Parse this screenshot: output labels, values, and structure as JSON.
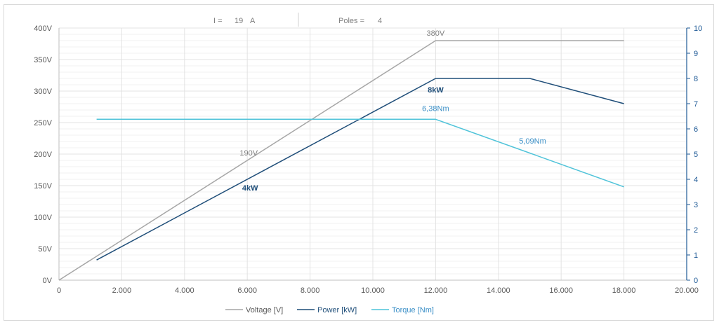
{
  "header": {
    "current_label": "I =",
    "current_value": "19",
    "current_unit": "A",
    "poles_label": "Poles =",
    "poles_value": "4"
  },
  "colors": {
    "voltage": "#a6a6a6",
    "power": "#1f4e79",
    "torque": "#4fc3d9",
    "grid": "#e3e3e3",
    "right_axis": "#1f5a96"
  },
  "chart_data": {
    "type": "line",
    "x_ticks": [
      "0",
      "2.000",
      "4.000",
      "6.000",
      "8.000",
      "10.000",
      "12.000",
      "14.000",
      "16.000",
      "18.000",
      "20.000"
    ],
    "y_left_ticks": [
      "0V",
      "50V",
      "100V",
      "150V",
      "200V",
      "250V",
      "300V",
      "350V",
      "400V"
    ],
    "y_right_ticks": [
      "0",
      "1",
      "2",
      "3",
      "4",
      "5",
      "6",
      "7",
      "8",
      "9",
      "10"
    ],
    "xlim": [
      0,
      20000
    ],
    "ylim_left": [
      0,
      400
    ],
    "ylim_right": [
      0,
      10
    ],
    "grid": true,
    "legend_position": "bottom",
    "series": [
      {
        "key": "voltage",
        "name": "Voltage [V]",
        "axis": "left",
        "points": [
          [
            0,
            0
          ],
          [
            12000,
            380
          ],
          [
            18000,
            380
          ]
        ]
      },
      {
        "key": "power",
        "name": "Power [kW]",
        "axis": "right",
        "points": [
          [
            1200,
            0.8
          ],
          [
            12000,
            8
          ],
          [
            15000,
            8
          ],
          [
            18000,
            7
          ]
        ]
      },
      {
        "key": "torque",
        "name": "Torque [Nm]",
        "axis": "right",
        "points": [
          [
            1200,
            6.38
          ],
          [
            12000,
            6.38
          ],
          [
            18000,
            3.7
          ]
        ]
      }
    ],
    "annotations": [
      {
        "text": "380V",
        "series": "voltage",
        "x": 12000,
        "y": 380,
        "axis": "left"
      },
      {
        "text": "190V",
        "series": "voltage",
        "x": 6000,
        "y": 190,
        "axis": "left"
      },
      {
        "text": "8kW",
        "series": "power",
        "x": 12000,
        "y": 8,
        "axis": "right"
      },
      {
        "text": "4kW",
        "series": "power",
        "x": 6000,
        "y": 4,
        "axis": "right"
      },
      {
        "text": "6,38Nm",
        "series": "torque",
        "x": 12000,
        "y": 6.38,
        "axis": "right"
      },
      {
        "text": "5,09Nm",
        "series": "torque",
        "x": 15000,
        "y": 5.09,
        "axis": "right"
      }
    ]
  }
}
